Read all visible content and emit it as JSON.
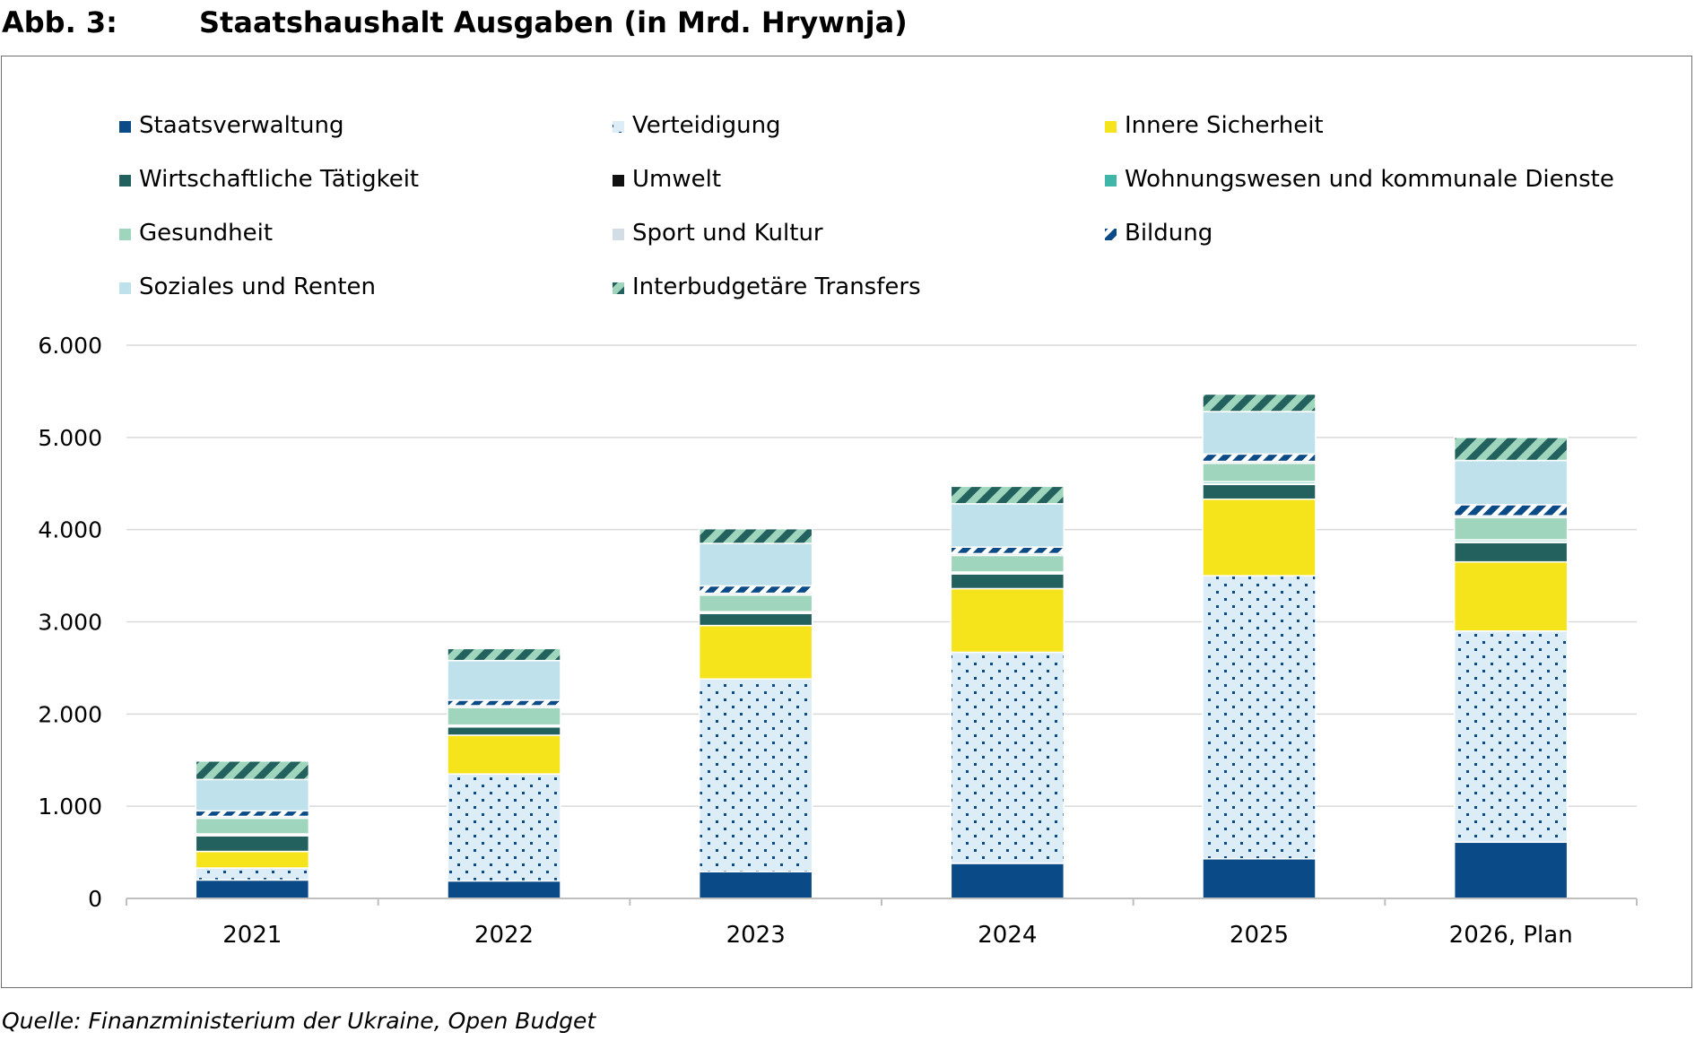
{
  "figure": {
    "label": "Abb. 3:",
    "title": "Staatshaushalt Ausgaben (in Mrd. Hrywnja)",
    "source": "Quelle: Finanzministerium der Ukraine, Open Budget"
  },
  "chart_data": {
    "type": "bar",
    "stacked": true,
    "title": "Staatshaushalt Ausgaben (in Mrd. Hrywnja)",
    "xlabel": "",
    "ylabel": "",
    "ylim": [
      0,
      6000
    ],
    "yticks": [
      0,
      1000,
      2000,
      3000,
      4000,
      5000,
      6000
    ],
    "ytick_labels": [
      "0",
      "1.000",
      "2.000",
      "3.000",
      "4.000",
      "5.000",
      "6.000"
    ],
    "grid": true,
    "legend_position": "top",
    "categories": [
      "2021",
      "2022",
      "2023",
      "2024",
      "2025",
      "2026, Plan"
    ],
    "series": [
      {
        "name": "Staatsverwaltung",
        "color": "#0a4a87",
        "pattern": "solid",
        "values": [
          200,
          190,
          290,
          380,
          430,
          610
        ]
      },
      {
        "name": "Verteidigung",
        "color": "#dcedf7",
        "pattern": "dots",
        "pattern_color": "#0a4a87",
        "values": [
          130,
          1160,
          2090,
          2290,
          3070,
          2290
        ]
      },
      {
        "name": "Innere Sicherheit",
        "color": "#f5e31c",
        "pattern": "solid",
        "values": [
          180,
          420,
          580,
          690,
          830,
          750
        ]
      },
      {
        "name": "Wirtschaftliche Tätigkeit",
        "color": "#23615e",
        "pattern": "solid",
        "values": [
          170,
          90,
          130,
          160,
          160,
          210
        ]
      },
      {
        "name": "Umwelt",
        "color": "#111111",
        "pattern": "solid",
        "values": [
          10,
          10,
          10,
          10,
          10,
          10
        ]
      },
      {
        "name": "Wohnungswesen und kommunale Dienste",
        "color": "#3fb6a8",
        "pattern": "solid",
        "values": [
          10,
          10,
          10,
          10,
          20,
          20
        ]
      },
      {
        "name": "Gesundheit",
        "color": "#9fd5bc",
        "pattern": "solid",
        "values": [
          170,
          190,
          180,
          180,
          200,
          240
        ]
      },
      {
        "name": "Sport und Kultur",
        "color": "#d2dde6",
        "pattern": "solid",
        "values": [
          20,
          20,
          20,
          20,
          20,
          20
        ]
      },
      {
        "name": "Bildung",
        "color": "#0a4a87",
        "pattern": "stripes",
        "pattern_color": "#ffffff",
        "values": [
          60,
          60,
          80,
          70,
          80,
          120
        ]
      },
      {
        "name": "Soziales und Renten",
        "color": "#bfe1ec",
        "pattern": "solid",
        "values": [
          340,
          430,
          460,
          470,
          460,
          480
        ]
      },
      {
        "name": "Interbudgetäre Transfers",
        "color": "#9fd5bc",
        "pattern": "stripes",
        "pattern_color": "#23615e",
        "values": [
          200,
          130,
          160,
          190,
          190,
          250
        ]
      }
    ]
  }
}
